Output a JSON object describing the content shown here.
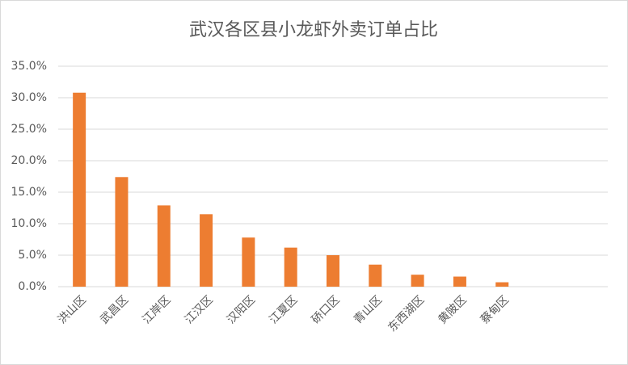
{
  "chart_data": {
    "type": "bar",
    "title": "武汉各区县小龙虾外卖订单占比",
    "categories": [
      "洪山区",
      "武昌区",
      "江岸区",
      "江汉区",
      "汉阳区",
      "江夏区",
      "硚口区",
      "青山区",
      "东西湖区",
      "黄陂区",
      "蔡甸区",
      null,
      null
    ],
    "values": [
      30.8,
      17.4,
      12.9,
      11.5,
      7.8,
      6.2,
      5.0,
      3.5,
      1.9,
      1.6,
      0.7,
      0,
      0
    ],
    "color": "#ed7d31",
    "ylim": [
      0,
      35
    ],
    "yticks": [
      {
        "value": 0,
        "label": "0.0%"
      },
      {
        "value": 5,
        "label": "5.0%"
      },
      {
        "value": 10,
        "label": "10.0%"
      },
      {
        "value": 15,
        "label": "15.0%"
      },
      {
        "value": 20,
        "label": "20.0%"
      },
      {
        "value": 25,
        "label": "25.0%"
      },
      {
        "value": 30,
        "label": "30.0%"
      },
      {
        "value": 35,
        "label": "35.0%"
      }
    ],
    "grid": true
  }
}
